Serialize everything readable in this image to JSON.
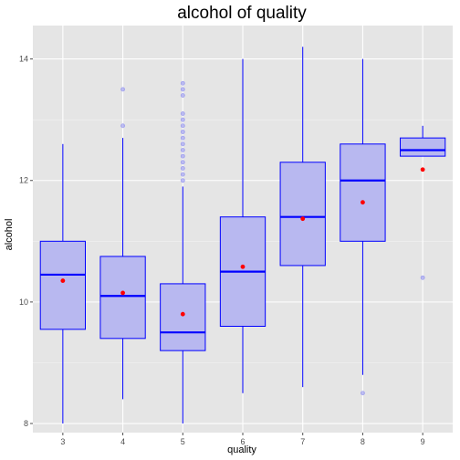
{
  "chart_data": {
    "type": "boxplot",
    "title": "alcohol of quality",
    "xlabel": "quality",
    "ylabel": "alcohol",
    "ylim": [
      7.85,
      14.55
    ],
    "yticks": [
      8,
      10,
      12,
      14
    ],
    "grid": true,
    "colors": {
      "panel": "#e5e5e5",
      "grid_major": "#ffffff",
      "box_fill": "#b8b8f0",
      "box_line": "#0000ff",
      "outlier": "#8c8cf0",
      "mean": "#ff0000",
      "tick": "#4d4d4d"
    },
    "categories": [
      "3",
      "4",
      "5",
      "6",
      "7",
      "8",
      "9"
    ],
    "boxes": [
      {
        "category": "3",
        "min": 8.0,
        "q1": 9.55,
        "median": 10.45,
        "q3": 11.0,
        "max": 12.6,
        "mean": 10.35,
        "outliers": []
      },
      {
        "category": "4",
        "min": 8.4,
        "q1": 9.4,
        "median": 10.1,
        "q3": 10.75,
        "max": 12.7,
        "mean": 10.15,
        "outliers": [
          12.9,
          13.5
        ]
      },
      {
        "category": "5",
        "min": 8.0,
        "q1": 9.2,
        "median": 9.5,
        "q3": 10.3,
        "max": 11.9,
        "mean": 9.8,
        "outliers": [
          12.0,
          12.1,
          12.2,
          12.3,
          12.4,
          12.5,
          12.6,
          12.7,
          12.8,
          12.9,
          13.0,
          13.1,
          13.4,
          13.5,
          13.6
        ]
      },
      {
        "category": "6",
        "min": 8.5,
        "q1": 9.6,
        "median": 10.5,
        "q3": 11.4,
        "max": 14.0,
        "mean": 10.58,
        "outliers": []
      },
      {
        "category": "7",
        "min": 8.6,
        "q1": 10.6,
        "median": 11.4,
        "q3": 12.3,
        "max": 14.2,
        "mean": 11.37,
        "outliers": []
      },
      {
        "category": "8",
        "min": 8.8,
        "q1": 11.0,
        "median": 12.0,
        "q3": 12.6,
        "max": 14.0,
        "mean": 11.64,
        "outliers": [
          8.5
        ]
      },
      {
        "category": "9",
        "min": 12.4,
        "q1": 12.4,
        "median": 12.5,
        "q3": 12.7,
        "max": 12.9,
        "mean": 12.18,
        "outliers": [
          10.4
        ]
      }
    ]
  }
}
